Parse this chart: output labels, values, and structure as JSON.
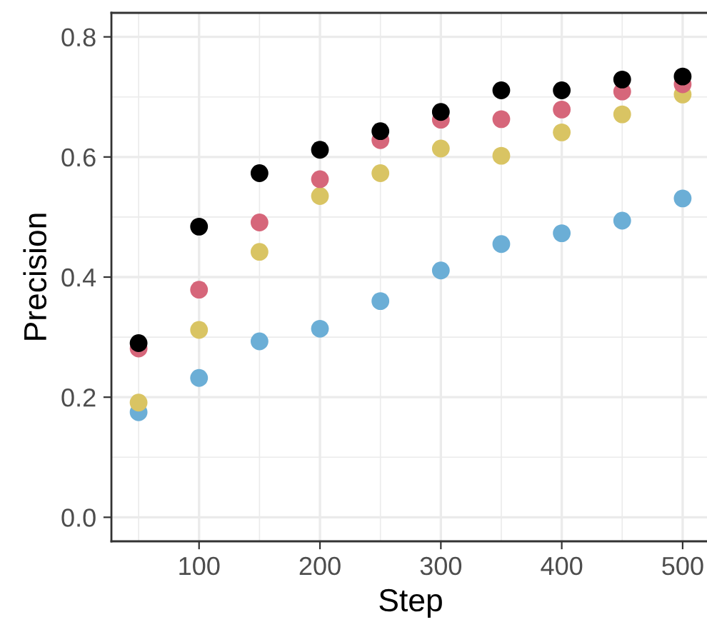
{
  "chart_data": {
    "type": "scatter",
    "xlabel": "Step",
    "ylabel": "Precision",
    "x": [
      50,
      100,
      150,
      200,
      250,
      300,
      350,
      400,
      450,
      500
    ],
    "series": [
      {
        "color": "#6baed6",
        "values": [
          0.175,
          0.232,
          0.293,
          0.314,
          0.36,
          0.411,
          0.455,
          0.473,
          0.494,
          0.531
        ]
      },
      {
        "color": "#d9c463",
        "values": [
          0.191,
          0.312,
          0.442,
          0.535,
          0.573,
          0.614,
          0.602,
          0.641,
          0.671,
          0.704
        ]
      },
      {
        "color": "#d6667a",
        "values": [
          0.281,
          0.379,
          0.491,
          0.563,
          0.628,
          0.662,
          0.663,
          0.679,
          0.709,
          0.721
        ]
      },
      {
        "color": "#000000",
        "values": [
          0.29,
          0.484,
          0.573,
          0.612,
          0.643,
          0.675,
          0.711,
          0.711,
          0.729,
          0.734
        ]
      }
    ],
    "xlim": [
      27.5,
      522.5
    ],
    "xticks": [
      100,
      200,
      300,
      400,
      500
    ],
    "ylim": [
      -0.04,
      0.84
    ],
    "yticks": [
      {
        "value": 0,
        "label": "0.0"
      },
      {
        "value": 0.2,
        "label": "0.2"
      },
      {
        "value": 0.4,
        "label": "0.4"
      },
      {
        "value": 0.6,
        "label": "0.6"
      },
      {
        "value": 0.8,
        "label": "0.8"
      }
    ],
    "grid": true,
    "marker": "circle"
  }
}
